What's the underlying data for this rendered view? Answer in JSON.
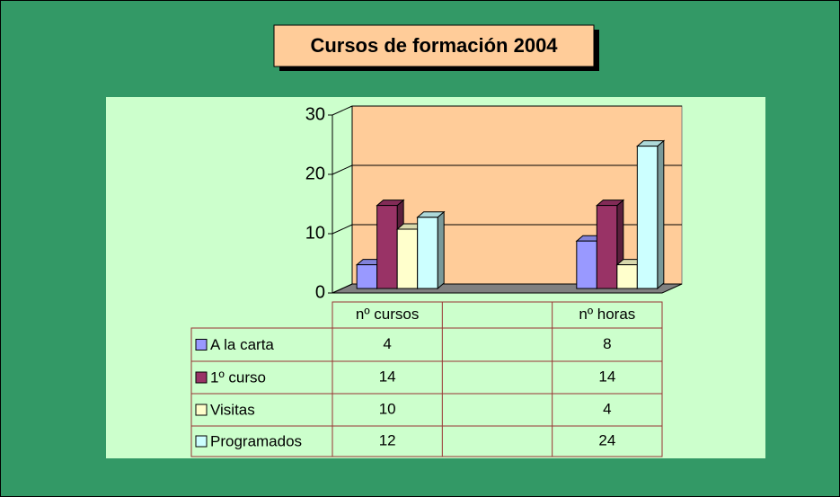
{
  "chart_data": {
    "type": "bar3d",
    "title": "Cursos de formación 2004",
    "categories": [
      "nº cursos",
      null,
      "nº horas"
    ],
    "series": [
      {
        "name": "A la carta",
        "color": "#9999ff",
        "values": [
          4,
          null,
          8
        ]
      },
      {
        "name": "1º curso",
        "color": "#993366",
        "values": [
          14,
          null,
          14
        ]
      },
      {
        "name": "Visitas",
        "color": "#ffffcc",
        "values": [
          10,
          null,
          4
        ]
      },
      {
        "name": "Programados",
        "color": "#ccffff",
        "values": [
          12,
          null,
          24
        ]
      }
    ],
    "ylim": [
      0,
      30
    ],
    "yticks": [
      0,
      10,
      20,
      30
    ],
    "grid": true,
    "data_table": true
  }
}
